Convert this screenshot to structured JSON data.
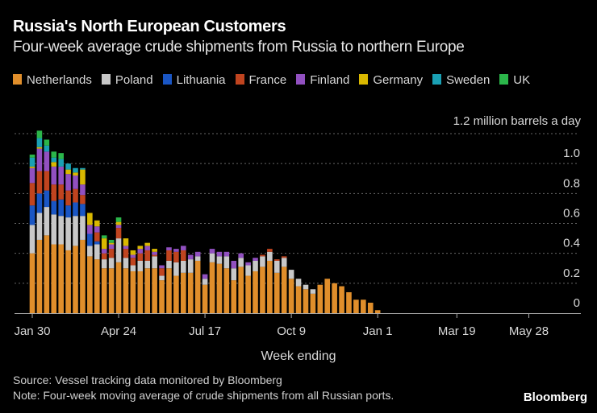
{
  "header": {
    "title": "Russia's North European Customers",
    "subtitle": "Four-week average crude shipments from Russia to northern Europe"
  },
  "footer": {
    "source": "Source: Vessel tracking data monitored by Bloomberg",
    "note": "Note: Four-week moving average of crude shipments from all Russian ports.",
    "brand": "Bloomberg"
  },
  "chart_data": {
    "type": "bar",
    "stacked": true,
    "title": "Russia's North European Customers",
    "subtitle": "Four-week average crude shipments from Russia to northern Europe",
    "xlabel": "Week ending",
    "ylabel": "million barrels a day",
    "unit_label": "1.2 million barrels a day",
    "ylim": [
      0,
      1.2
    ],
    "yticks": [
      0,
      0.2,
      0.4,
      0.6,
      0.8,
      1.0,
      1.2
    ],
    "ytick_labels": [
      "0",
      "0.2",
      "0.4",
      "0.6",
      "0.8",
      "1.0",
      "1.2"
    ],
    "grid": true,
    "legend_position": "top-left",
    "x_weeks_total": 76,
    "xticks": [
      {
        "label": "Jan 30",
        "week": 0
      },
      {
        "label": "Apr 24",
        "week": 12
      },
      {
        "label": "Jul 17",
        "week": 24
      },
      {
        "label": "Oct 9",
        "week": 36
      },
      {
        "label": "Jan 1",
        "week": 48
      },
      {
        "label": "Mar 19",
        "week": 59
      },
      {
        "label": "May 28",
        "week": 69
      }
    ],
    "series": [
      {
        "name": "Netherlands",
        "color": "#e08e2b",
        "values": [
          0.4,
          0.49,
          0.52,
          0.46,
          0.46,
          0.42,
          0.45,
          0.49,
          0.38,
          0.36,
          0.3,
          0.3,
          0.34,
          0.3,
          0.28,
          0.28,
          0.3,
          0.3,
          0.22,
          0.3,
          0.25,
          0.27,
          0.27,
          0.35,
          0.19,
          0.34,
          0.33,
          0.3,
          0.22,
          0.31,
          0.25,
          0.28,
          0.31,
          0.35,
          0.27,
          0.31,
          0.23,
          0.18,
          0.16,
          0.13,
          0.19,
          0.23,
          0.2,
          0.18,
          0.14,
          0.09,
          0.09,
          0.07,
          0.02
        ]
      },
      {
        "name": "Poland",
        "color": "#c8c8c8",
        "values": [
          0.19,
          0.18,
          0.19,
          0.2,
          0.19,
          0.22,
          0.2,
          0.16,
          0.07,
          0.1,
          0.06,
          0.07,
          0.16,
          0.07,
          0.04,
          0.07,
          0.05,
          0.08,
          0.03,
          0.05,
          0.09,
          0.08,
          0.09,
          0.03,
          0.04,
          0.06,
          0.05,
          0.08,
          0.08,
          0.06,
          0.07,
          0.07,
          0.07,
          0.06,
          0.08,
          0.06,
          0.06,
          0.05,
          0.03,
          0.03,
          0,
          0,
          0,
          0,
          0,
          0,
          0,
          0,
          0
        ]
      },
      {
        "name": "Lithuania",
        "color": "#1a56c4",
        "values": [
          0.13,
          0.13,
          0.11,
          0.09,
          0.11,
          0.08,
          0.09,
          0.08,
          0.08,
          0.02,
          0.0,
          0,
          0,
          0,
          0,
          0,
          0,
          0,
          0,
          0,
          0,
          0,
          0,
          0,
          0,
          0,
          0,
          0,
          0,
          0,
          0,
          0,
          0,
          0,
          0,
          0,
          0,
          0,
          0,
          0,
          0,
          0,
          0,
          0,
          0,
          0,
          0,
          0,
          0
        ]
      },
      {
        "name": "France",
        "color": "#c0441f",
        "values": [
          0.15,
          0.15,
          0.13,
          0.11,
          0.1,
          0.1,
          0.09,
          0.06,
          0.0,
          0.06,
          0.04,
          0.06,
          0.07,
          0.06,
          0.05,
          0.05,
          0.07,
          0.01,
          0.05,
          0.07,
          0.07,
          0.07,
          0.0,
          0.0,
          0.0,
          0.0,
          0.0,
          0.0,
          0.0,
          0.0,
          0.0,
          0.0,
          0.01,
          0.02,
          0.01,
          0.01,
          0,
          0,
          0,
          0,
          0,
          0,
          0,
          0,
          0,
          0,
          0,
          0,
          0
        ]
      },
      {
        "name": "Finland",
        "color": "#9150c0",
        "values": [
          0.1,
          0.15,
          0.13,
          0.12,
          0.12,
          0.11,
          0.09,
          0.07,
          0.06,
          0.04,
          0.03,
          0.03,
          0.02,
          0.02,
          0.02,
          0.03,
          0.03,
          0.02,
          0.02,
          0.02,
          0.02,
          0.03,
          0.03,
          0.03,
          0.03,
          0.03,
          0.03,
          0.03,
          0.05,
          0.03,
          0.02,
          0.02,
          0.0,
          0.0,
          0.0,
          0.0,
          0,
          0,
          0,
          0,
          0,
          0,
          0,
          0,
          0,
          0,
          0,
          0,
          0
        ]
      },
      {
        "name": "Germany",
        "color": "#d9b800",
        "values": [
          0.01,
          0.01,
          0.0,
          0.03,
          0.0,
          0.03,
          0.02,
          0.1,
          0.08,
          0.04,
          0.07,
          0.01,
          0.02,
          0.05,
          0.03,
          0.02,
          0.02,
          0.02,
          0.0,
          0,
          0.0,
          0,
          0,
          0,
          0,
          0,
          0,
          0,
          0,
          0,
          0,
          0,
          0,
          0,
          0,
          0,
          0,
          0,
          0,
          0,
          0,
          0,
          0,
          0,
          0,
          0,
          0,
          0,
          0
        ]
      },
      {
        "name": "Sweden",
        "color": "#1aa0b4",
        "values": [
          0.06,
          0.06,
          0.04,
          0.03,
          0.05,
          0.04,
          0.03,
          0.01,
          0,
          0,
          0,
          0,
          0,
          0,
          0,
          0,
          0,
          0,
          0,
          0,
          0,
          0,
          0,
          0,
          0,
          0,
          0,
          0,
          0,
          0,
          0,
          0,
          0,
          0,
          0,
          0,
          0,
          0,
          0,
          0,
          0,
          0,
          0,
          0,
          0,
          0,
          0,
          0,
          0
        ]
      },
      {
        "name": "UK",
        "color": "#2bb64a",
        "values": [
          0.02,
          0.05,
          0.04,
          0.04,
          0.04,
          0.0,
          0.0,
          0.0,
          0.0,
          0.0,
          0.02,
          0.02,
          0.03,
          0.0,
          0,
          0,
          0,
          0,
          0,
          0,
          0,
          0,
          0,
          0,
          0,
          0,
          0,
          0,
          0,
          0,
          0,
          0,
          0,
          0,
          0,
          0,
          0,
          0,
          0,
          0,
          0,
          0,
          0,
          0,
          0,
          0,
          0,
          0,
          0
        ]
      }
    ]
  }
}
